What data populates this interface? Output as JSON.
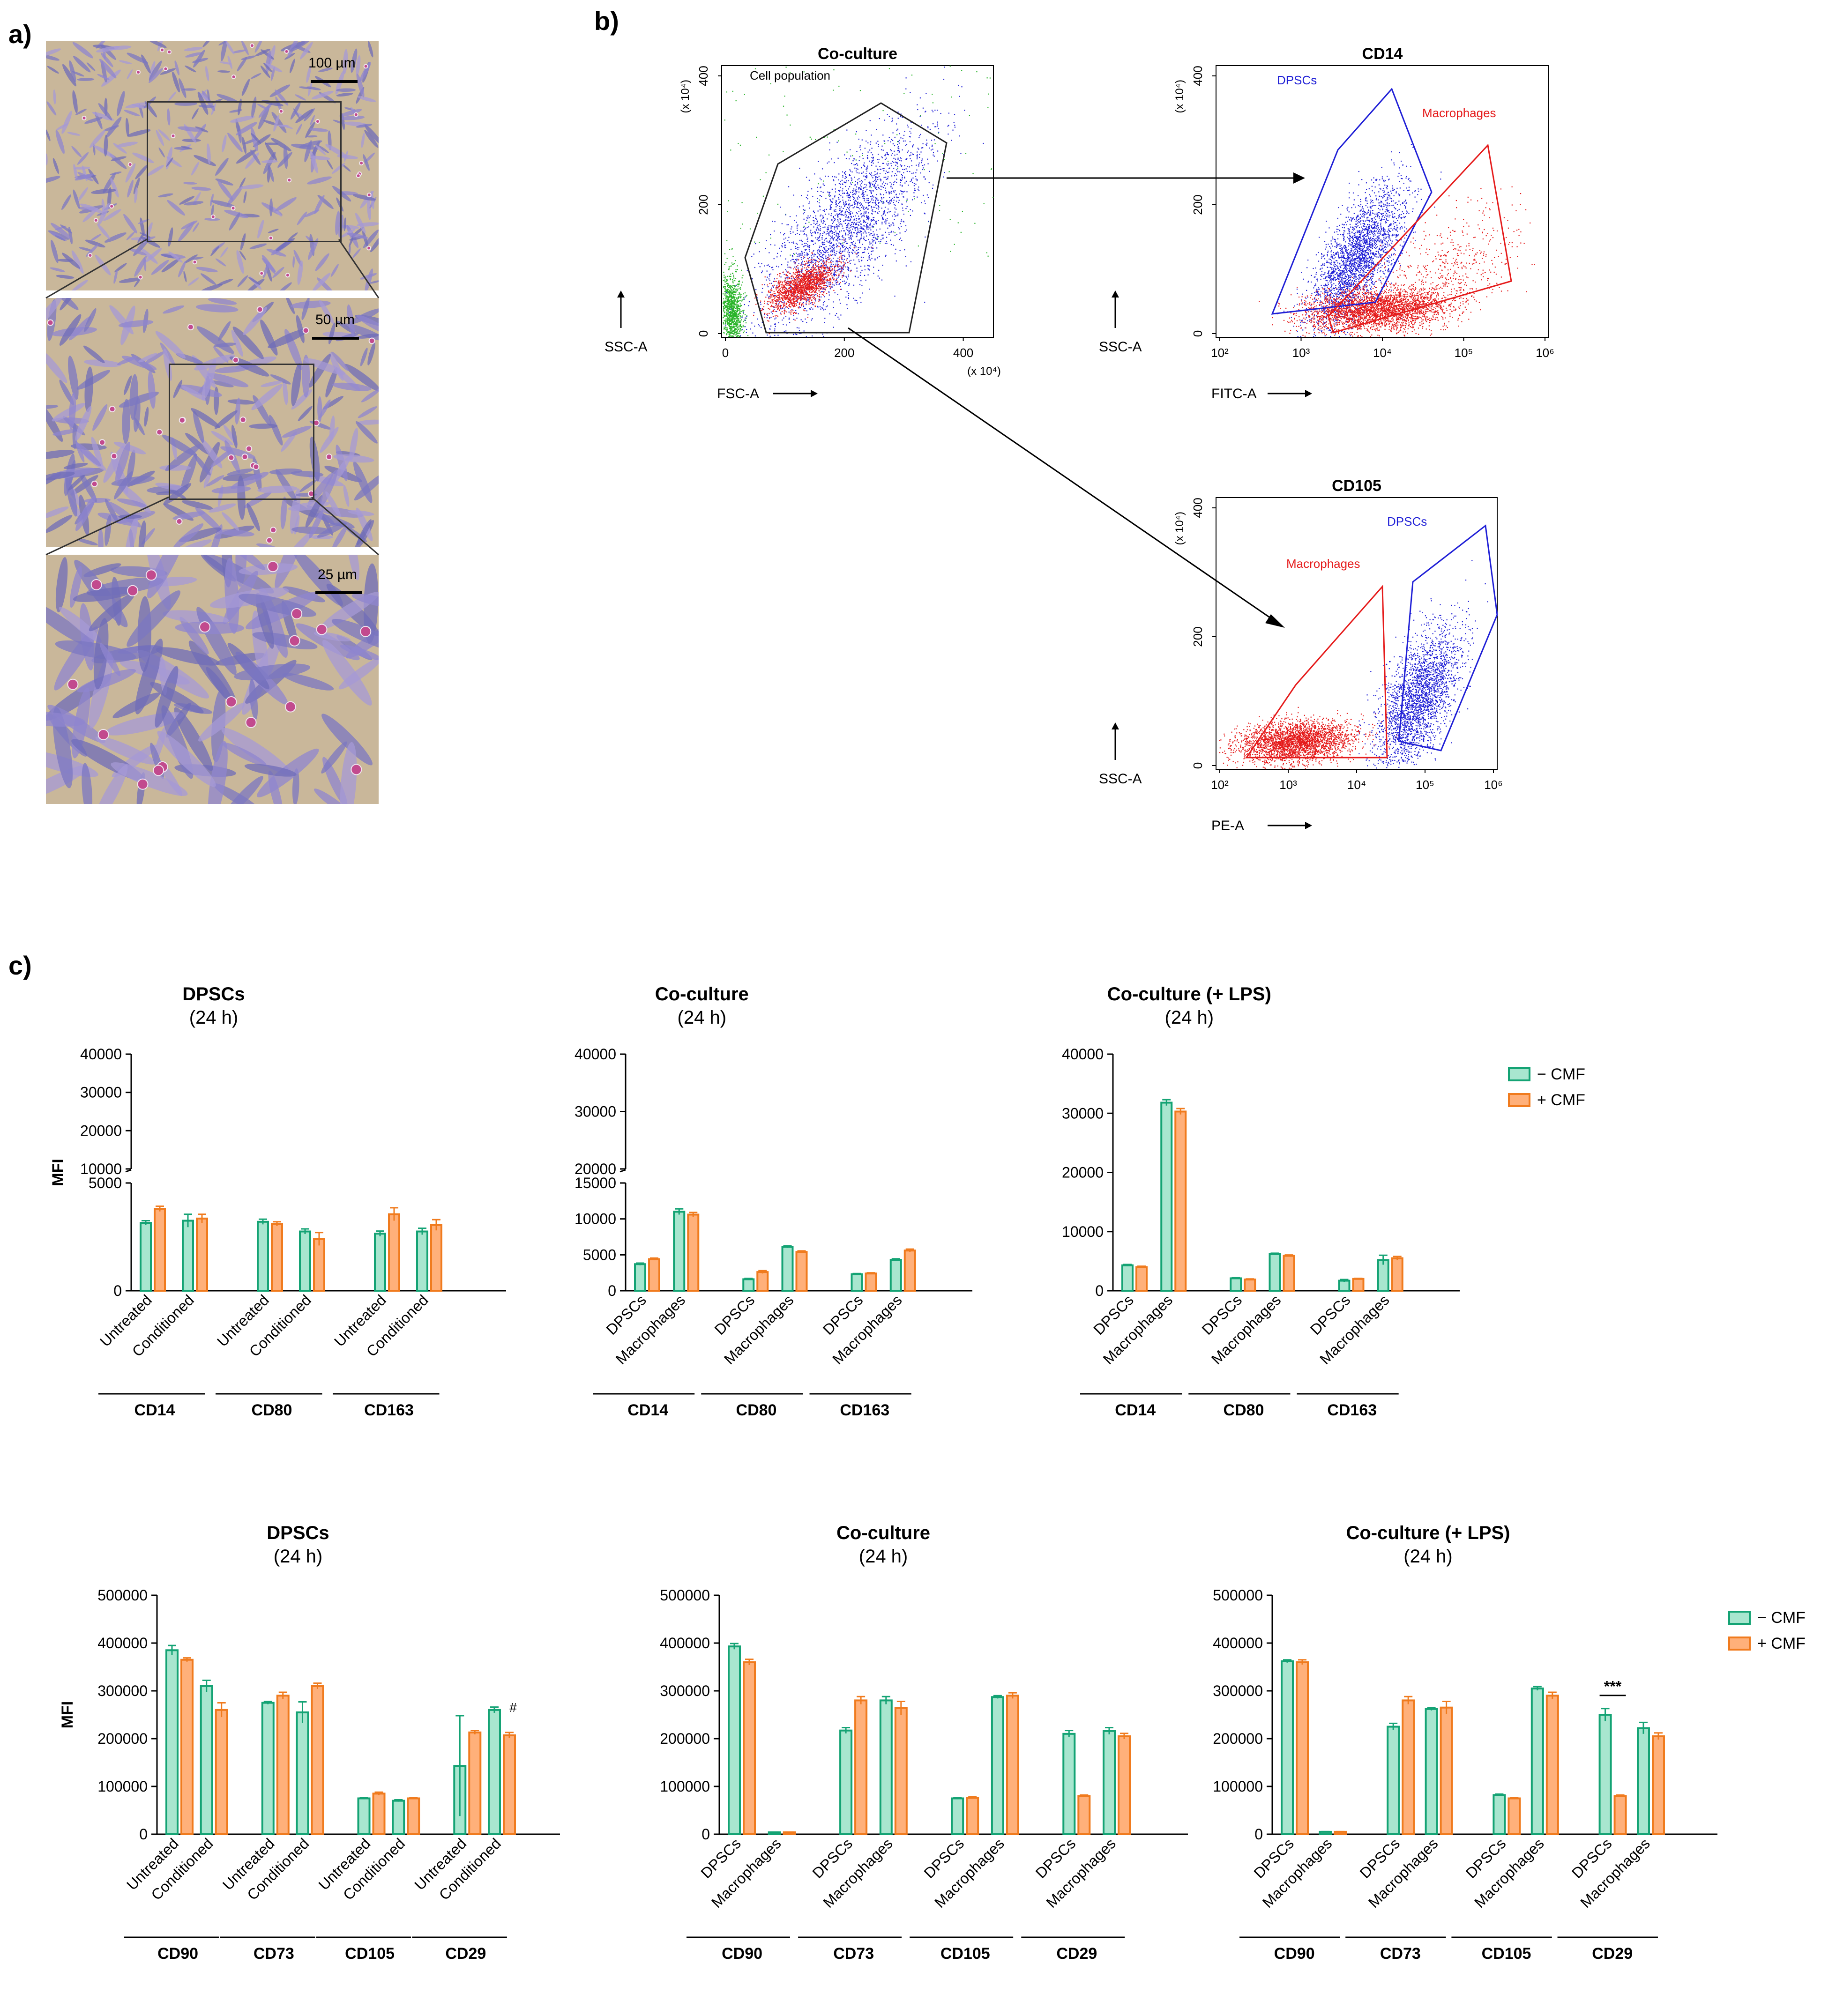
{
  "panels": {
    "a": "a)",
    "b": "b)",
    "c": "c)"
  },
  "micrographs": [
    {
      "scale_label": "100 µm"
    },
    {
      "scale_label": "50 µm"
    },
    {
      "scale_label": "25 µm"
    }
  ],
  "flow": {
    "plots": [
      {
        "title": "Co-culture",
        "gate_label": "Cell population",
        "ylabel": "SSC-A",
        "xlabel": "FSC-A",
        "exponent_y": "(x 10⁴)",
        "exponent_x": "(x 10⁴)",
        "x_ticks": [
          "0",
          "200",
          "400"
        ],
        "y_ticks": [
          "0",
          "200",
          "400"
        ]
      },
      {
        "title": "CD14",
        "ylabel": "SSC-A",
        "xlabel": "FITC-A",
        "exponent_y": "(x 10⁴)",
        "pop1": "DPSCs",
        "pop2": "Macrophages",
        "x_ticks": [
          "10²",
          "10³",
          "10⁴",
          "10⁵",
          "10⁶"
        ],
        "y_ticks": [
          "0",
          "200",
          "400"
        ]
      },
      {
        "title": "CD105",
        "ylabel": "SSC-A",
        "xlabel": "PE-A",
        "exponent_y": "(x 10⁴)",
        "pop1": "DPSCs",
        "pop2": "Macrophages",
        "x_ticks": [
          "10²",
          "10³",
          "10⁴",
          "10⁵",
          "10⁶"
        ],
        "y_ticks": [
          "0",
          "200",
          "400"
        ]
      }
    ],
    "colors": {
      "dpsc": "#1f1fd6",
      "mac": "#e51b1b",
      "debris": "#2bb52b",
      "other": "#333333"
    }
  },
  "legend": {
    "minus": "− CMF",
    "plus": "+ CMF"
  },
  "colors": {
    "minus_fill": "#a8e6cf",
    "minus_edge": "#14a374",
    "plus_fill": "#ffb07a",
    "plus_edge": "#f07b1e"
  },
  "chart_data": [
    {
      "type": "bar",
      "title": "DPSCs",
      "subtitle": "(24 h)",
      "ylabel": "MFI",
      "ylim": [
        0,
        40000
      ],
      "broken_axis": [
        5000,
        10000
      ],
      "y_ticks": [
        "0",
        "5000",
        "10000",
        "20000",
        "30000",
        "40000"
      ],
      "groups": [
        {
          "name": "CD14",
          "categories": [
            "Untreated",
            "Conditioned"
          ],
          "minus": [
            3150,
            3250
          ],
          "plus": [
            3800,
            3350
          ],
          "minus_err": [
            100,
            300
          ],
          "plus_err": [
            120,
            200
          ]
        },
        {
          "name": "CD80",
          "categories": [
            "Untreated",
            "Conditioned"
          ],
          "minus": [
            3200,
            2750
          ],
          "plus": [
            3100,
            2400
          ],
          "minus_err": [
            120,
            120
          ],
          "plus_err": [
            100,
            300
          ]
        },
        {
          "name": "CD163",
          "categories": [
            "Untreated",
            "Conditioned"
          ],
          "minus": [
            2650,
            2750
          ],
          "plus": [
            3550,
            3050
          ],
          "minus_err": [
            120,
            150
          ],
          "plus_err": [
            300,
            250
          ]
        }
      ]
    },
    {
      "type": "bar",
      "title": "Co-culture",
      "subtitle": "(24 h)",
      "ylabel": "",
      "ylim": [
        0,
        40000
      ],
      "broken_axis": [
        15000,
        20000
      ],
      "y_ticks": [
        "0",
        "5000",
        "10000",
        "15000",
        "20000",
        "30000",
        "40000"
      ],
      "groups": [
        {
          "name": "CD14",
          "categories": [
            "DPSCs",
            "Macrophages"
          ],
          "minus": [
            3700,
            11000
          ],
          "plus": [
            4400,
            10600
          ],
          "minus_err": [
            150,
            400
          ],
          "plus_err": [
            150,
            300
          ]
        },
        {
          "name": "CD80",
          "categories": [
            "DPSCs",
            "Macrophages"
          ],
          "minus": [
            1600,
            6100
          ],
          "plus": [
            2600,
            5400
          ],
          "minus_err": [
            120,
            150
          ],
          "plus_err": [
            200,
            150
          ]
        },
        {
          "name": "CD163",
          "categories": [
            "DPSCs",
            "Macrophages"
          ],
          "minus": [
            2300,
            4300
          ],
          "plus": [
            2400,
            5600
          ],
          "minus_err": [
            100,
            150
          ],
          "plus_err": [
            100,
            200
          ]
        }
      ]
    },
    {
      "type": "bar",
      "title": "Co-culture (+ LPS)",
      "subtitle": "(24 h)",
      "ylabel": "",
      "ylim": [
        0,
        40000
      ],
      "y_ticks": [
        "0",
        "10000",
        "20000",
        "30000",
        "40000"
      ],
      "groups": [
        {
          "name": "CD14",
          "categories": [
            "DPSCs",
            "Macrophages"
          ],
          "minus": [
            4300,
            31800
          ],
          "plus": [
            4000,
            30300
          ],
          "minus_err": [
            150,
            500
          ],
          "plus_err": [
            150,
            500
          ]
        },
        {
          "name": "CD80",
          "categories": [
            "DPSCs",
            "Macrophages"
          ],
          "minus": [
            2100,
            6200
          ],
          "plus": [
            1900,
            5900
          ],
          "minus_err": [
            100,
            150
          ],
          "plus_err": [
            100,
            150
          ]
        },
        {
          "name": "CD163",
          "categories": [
            "DPSCs",
            "Macrophages"
          ],
          "minus": [
            1700,
            5200
          ],
          "plus": [
            2000,
            5500
          ],
          "minus_err": [
            200,
            800
          ],
          "plus_err": [
            100,
            300
          ]
        }
      ]
    },
    {
      "type": "bar",
      "title": "DPSCs",
      "subtitle": "(24 h)",
      "ylabel": "MFI",
      "ylim": [
        0,
        500000
      ],
      "y_ticks": [
        "0",
        "100000",
        "200000",
        "300000",
        "400000",
        "500000"
      ],
      "annotation": "#",
      "groups": [
        {
          "name": "CD90",
          "categories": [
            "Untreated",
            "Conditioned"
          ],
          "minus": [
            385000,
            310000
          ],
          "plus": [
            365000,
            260000
          ],
          "minus_err": [
            10000,
            12000
          ],
          "plus_err": [
            4000,
            15000
          ]
        },
        {
          "name": "CD73",
          "categories": [
            "Untreated",
            "Conditioned"
          ],
          "minus": [
            275000,
            255000
          ],
          "plus": [
            290000,
            310000
          ],
          "minus_err": [
            3000,
            22000
          ],
          "plus_err": [
            7000,
            6000
          ]
        },
        {
          "name": "CD105",
          "categories": [
            "Untreated",
            "Conditioned"
          ],
          "minus": [
            75000,
            70000
          ],
          "plus": [
            85000,
            75000
          ],
          "minus_err": [
            2000,
            2000
          ],
          "plus_err": [
            3000,
            2000
          ]
        },
        {
          "name": "CD29",
          "categories": [
            "Untreated",
            "Conditioned"
          ],
          "minus": [
            143000,
            260000
          ],
          "plus": [
            213000,
            207000
          ],
          "minus_err": [
            105000,
            6000
          ],
          "plus_err": [
            4000,
            6000
          ]
        }
      ]
    },
    {
      "type": "bar",
      "title": "Co-culture",
      "subtitle": "(24 h)",
      "ylabel": "",
      "ylim": [
        0,
        500000
      ],
      "y_ticks": [
        "0",
        "100000",
        "200000",
        "300000",
        "400000",
        "500000"
      ],
      "groups": [
        {
          "name": "CD90",
          "categories": [
            "DPSCs",
            "Macrophages"
          ],
          "minus": [
            393000,
            4000
          ],
          "plus": [
            360000,
            4000
          ],
          "minus_err": [
            6000,
            500
          ],
          "plus_err": [
            6000,
            500
          ]
        },
        {
          "name": "CD73",
          "categories": [
            "DPSCs",
            "Macrophages"
          ],
          "minus": [
            217000,
            280000
          ],
          "plus": [
            280000,
            264000
          ],
          "minus_err": [
            6000,
            8000
          ],
          "plus_err": [
            8000,
            14000
          ]
        },
        {
          "name": "CD105",
          "categories": [
            "DPSCs",
            "Macrophages"
          ],
          "minus": [
            75000,
            287000
          ],
          "plus": [
            76000,
            290000
          ],
          "minus_err": [
            2000,
            3000
          ],
          "plus_err": [
            2000,
            6000
          ]
        },
        {
          "name": "CD29",
          "categories": [
            "DPSCs",
            "Macrophages"
          ],
          "minus": [
            210000,
            216000
          ],
          "plus": [
            80000,
            205000
          ],
          "minus_err": [
            7000,
            7000
          ],
          "plus_err": [
            2000,
            6000
          ]
        }
      ]
    },
    {
      "type": "bar",
      "title": "Co-culture (+ LPS)",
      "subtitle": "(24 h)",
      "ylabel": "",
      "ylim": [
        0,
        500000
      ],
      "y_ticks": [
        "0",
        "100000",
        "200000",
        "300000",
        "400000",
        "500000"
      ],
      "annotation": "***",
      "groups": [
        {
          "name": "CD90",
          "categories": [
            "DPSCs",
            "Macrophages"
          ],
          "minus": [
            362000,
            5000
          ],
          "plus": [
            360000,
            5000
          ],
          "minus_err": [
            3000,
            500
          ],
          "plus_err": [
            5000,
            500
          ]
        },
        {
          "name": "CD73",
          "categories": [
            "DPSCs",
            "Macrophages"
          ],
          "minus": [
            225000,
            262000
          ],
          "plus": [
            280000,
            265000
          ],
          "minus_err": [
            7000,
            3000
          ],
          "plus_err": [
            8000,
            13000
          ]
        },
        {
          "name": "CD105",
          "categories": [
            "DPSCs",
            "Macrophages"
          ],
          "minus": [
            82000,
            305000
          ],
          "plus": [
            75000,
            290000
          ],
          "minus_err": [
            2000,
            4000
          ],
          "plus_err": [
            2000,
            7000
          ]
        },
        {
          "name": "CD29",
          "categories": [
            "DPSCs",
            "Macrophages"
          ],
          "minus": [
            250000,
            222000
          ],
          "plus": [
            80000,
            205000
          ],
          "minus_err": [
            13000,
            12000
          ],
          "plus_err": [
            2000,
            7000
          ]
        }
      ]
    }
  ]
}
